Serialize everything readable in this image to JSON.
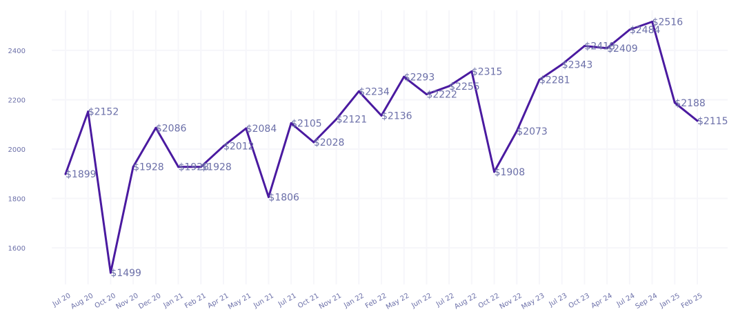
{
  "chart_data": {
    "type": "line",
    "title": "",
    "xlabel": "",
    "ylabel": "",
    "ylim": [
      1470,
      2580
    ],
    "y_ticks": [
      1600,
      1800,
      2000,
      2200,
      2400
    ],
    "grid": true,
    "legend": "none",
    "colors": {
      "line": "#4a1aa0",
      "labels": "#6b6fa8",
      "grid": "#f6f6fa"
    },
    "categories": [
      "Jul 20",
      "Aug 20",
      "Oct 20",
      "Nov 20",
      "Dec 20",
      "Jan 21",
      "Feb 21",
      "Apr 21",
      "May 21",
      "Jun 21",
      "Jul 21",
      "Oct 21",
      "Nov 21",
      "Jan 22",
      "Feb 22",
      "May 22",
      "Jun 22",
      "Jul 22",
      "Aug 22",
      "Oct 22",
      "Nov 22",
      "May 23",
      "Jul 23",
      "Oct 23",
      "Apr 24",
      "Jul 24",
      "Sep 24",
      "Jan 25",
      "Feb 25"
    ],
    "series": [
      {
        "values": [
          1899,
          2152,
          1499,
          1928,
          2086,
          1928,
          1928,
          2012,
          2084,
          1806,
          2105,
          2028,
          2121,
          2234,
          2136,
          2293,
          2222,
          2255,
          2315,
          1908,
          2073,
          2281,
          2343,
          2418,
          2409,
          2484,
          2516,
          2188,
          2115
        ],
        "labels": [
          "$1899",
          "$2152",
          "$1499",
          "$1928",
          "$2086",
          "$1928",
          "$1928",
          "$2012",
          "$2084",
          "$1806",
          "$2105",
          "$2028",
          "$2121",
          "$2234",
          "$2136",
          "$2293",
          "$2222",
          "$2255",
          "$2315",
          "$1908",
          "$2073",
          "$2281",
          "$2343",
          "$2418",
          "$2409",
          "$2484",
          "$2516",
          "$2188",
          "$2115"
        ]
      }
    ]
  }
}
